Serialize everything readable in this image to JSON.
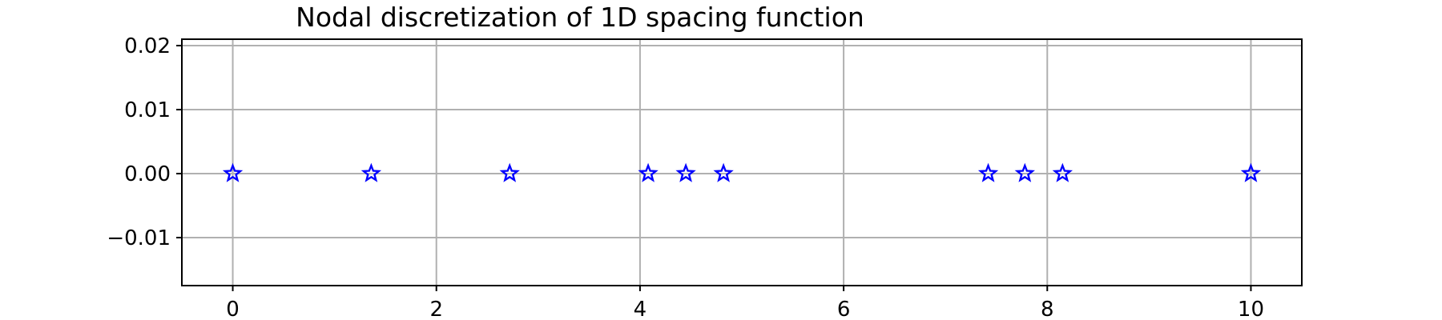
{
  "chart_data": {
    "type": "scatter",
    "title": "Nodal discretization of 1D spacing function",
    "xlabel": "",
    "ylabel": "",
    "xlim": [
      -0.5,
      10.5
    ],
    "ylim": [
      -0.0175,
      0.021
    ],
    "x_ticks": [
      0,
      2,
      4,
      6,
      8,
      10
    ],
    "x_tick_labels": [
      "0",
      "2",
      "4",
      "6",
      "8",
      "10"
    ],
    "y_ticks": [
      0.02,
      0.01,
      0.0,
      -0.01
    ],
    "y_tick_labels": [
      "0.02",
      "0.01",
      "0.00",
      "−0.01"
    ],
    "grid": true,
    "marker": "star",
    "marker_color": "#0000ff",
    "series": [
      {
        "x": [
          0.0,
          1.36,
          2.72,
          4.08,
          4.45,
          4.82,
          7.42,
          7.78,
          8.15,
          10.0
        ],
        "y": [
          0,
          0,
          0,
          0,
          0,
          0,
          0,
          0,
          0,
          0
        ]
      }
    ]
  }
}
